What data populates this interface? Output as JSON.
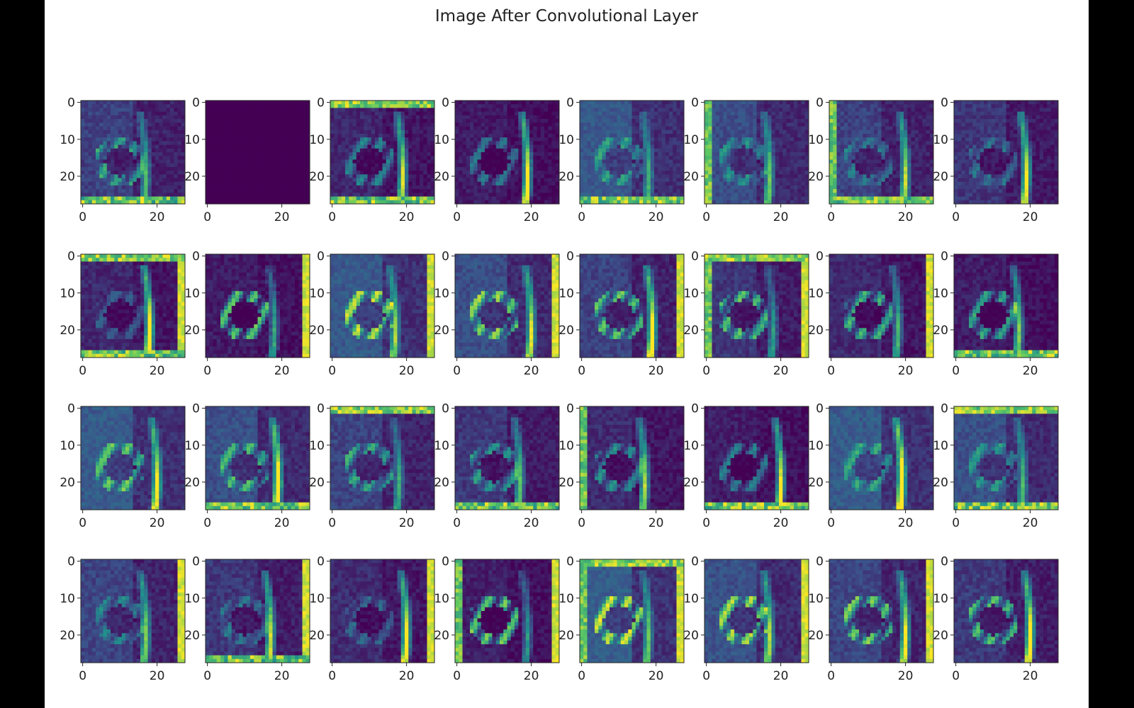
{
  "figure": {
    "title": "Image After Convolutional Layer"
  },
  "chart_data": {
    "type": "heatmap",
    "title": "Image After Convolutional Layer",
    "rows": 4,
    "cols": 8,
    "image_size": 28,
    "x_ticks": [
      0,
      20
    ],
    "y_ticks": [
      0,
      10,
      20
    ],
    "x_tick_labels": [
      "0",
      "20"
    ],
    "y_tick_labels": [
      "0",
      "10",
      "20"
    ],
    "colormap": "viridis",
    "colormap_colors": [
      "#440154",
      "#3b528b",
      "#21918c",
      "#5ec962",
      "#fde725"
    ],
    "panel_count": 32
  }
}
